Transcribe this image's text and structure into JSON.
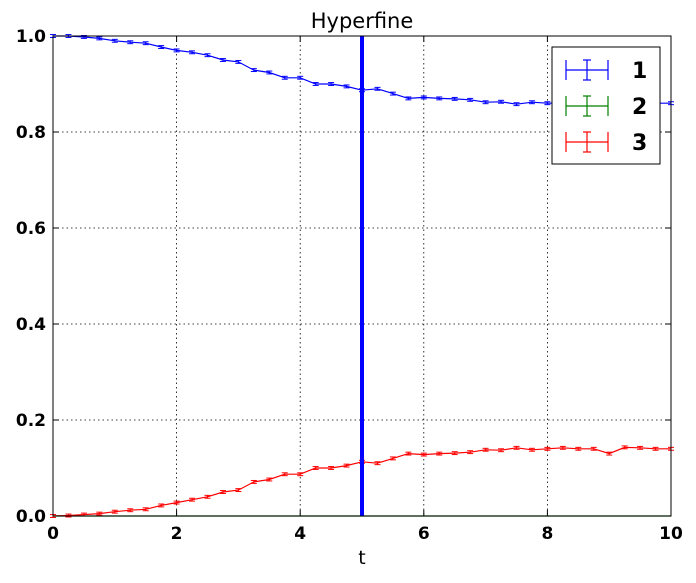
{
  "chart_data": {
    "type": "line",
    "title": "Hyperfine",
    "xlabel": "t",
    "ylabel": "",
    "xlim": [
      0,
      10
    ],
    "ylim": [
      0,
      1
    ],
    "xticks": [
      "0",
      "2",
      "4",
      "6",
      "8",
      "10"
    ],
    "yticks": [
      "0.0",
      "0.2",
      "0.4",
      "0.6",
      "0.8",
      "1.0"
    ],
    "grid": true,
    "legend_position": "top-right",
    "vertical_line": {
      "x": 5,
      "color": "#0000ff"
    },
    "x": [
      0,
      0.25,
      0.5,
      0.75,
      1,
      1.25,
      1.5,
      1.75,
      2,
      2.25,
      2.5,
      2.75,
      3,
      3.25,
      3.5,
      3.75,
      4,
      4.25,
      4.5,
      4.75,
      5,
      5.25,
      5.5,
      5.75,
      6,
      6.25,
      6.5,
      6.75,
      7,
      7.25,
      7.5,
      7.75,
      8,
      8.25,
      8.5,
      8.75,
      9,
      9.25,
      9.5,
      9.75,
      10
    ],
    "series": [
      {
        "name": "1",
        "color": "#0000ff",
        "values": [
          1.0,
          1.0,
          0.998,
          0.995,
          0.99,
          0.987,
          0.985,
          0.977,
          0.97,
          0.966,
          0.96,
          0.95,
          0.946,
          0.929,
          0.924,
          0.913,
          0.913,
          0.9,
          0.9,
          0.895,
          0.887,
          0.89,
          0.88,
          0.87,
          0.872,
          0.87,
          0.869,
          0.867,
          0.862,
          0.863,
          0.858,
          0.862,
          0.86,
          0.86,
          0.86,
          0.86,
          0.86,
          0.86,
          0.86,
          0.86,
          0.86
        ],
        "error": 0.003
      },
      {
        "name": "2",
        "color": "#008000",
        "values": [
          0,
          0,
          0,
          0,
          0,
          0,
          0,
          0,
          0,
          0,
          0,
          0,
          0,
          0,
          0,
          0,
          0,
          0,
          0,
          0,
          0,
          0,
          0,
          0,
          0,
          0,
          0,
          0,
          0,
          0,
          0,
          0,
          0,
          0,
          0,
          0,
          0,
          0,
          0,
          0,
          0
        ],
        "error": 0.0
      },
      {
        "name": "3",
        "color": "#ff0000",
        "values": [
          0.0,
          0.001,
          0.003,
          0.005,
          0.009,
          0.012,
          0.014,
          0.022,
          0.028,
          0.034,
          0.04,
          0.05,
          0.054,
          0.071,
          0.076,
          0.087,
          0.087,
          0.1,
          0.1,
          0.105,
          0.113,
          0.11,
          0.12,
          0.13,
          0.128,
          0.13,
          0.131,
          0.133,
          0.138,
          0.137,
          0.142,
          0.138,
          0.14,
          0.142,
          0.14,
          0.14,
          0.13,
          0.143,
          0.142,
          0.14,
          0.14
        ],
        "error": 0.003
      }
    ]
  }
}
